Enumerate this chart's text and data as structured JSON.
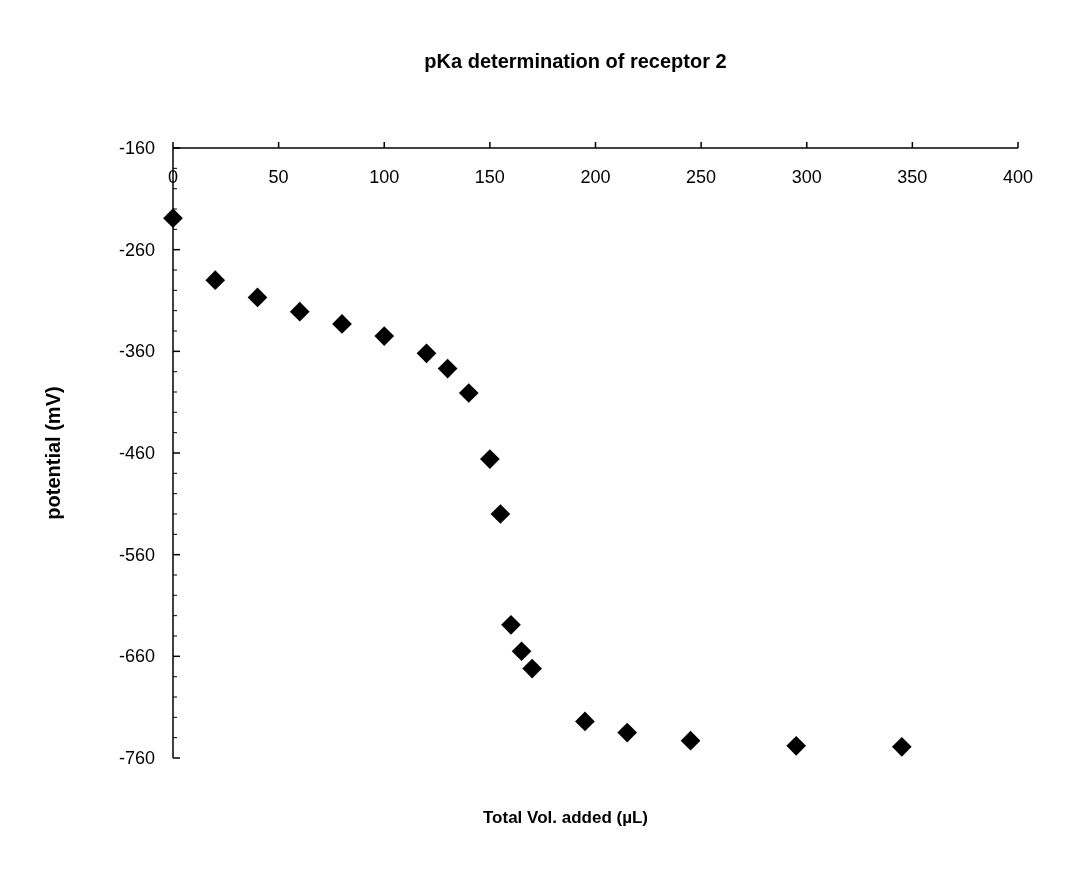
{
  "chart_data": {
    "type": "scatter",
    "title": "pKa determination of receptor 2",
    "xlabel": "Total Vol. added (µL)",
    "ylabel": "potential (mV)",
    "x": [
      0,
      20,
      40,
      60,
      80,
      100,
      120,
      130,
      140,
      150,
      155,
      160,
      165,
      170,
      195,
      215,
      245,
      295,
      345
    ],
    "values": [
      -229,
      -290,
      -307,
      -321,
      -333,
      -345,
      -362,
      -377,
      -401,
      -466,
      -520,
      -629,
      -655,
      -672,
      -724,
      -735,
      -743,
      -748,
      -749
    ],
    "color": "#000000",
    "marker": "diamond",
    "xlim": [
      0,
      400
    ],
    "xticks": [
      0,
      50,
      100,
      150,
      200,
      250,
      300,
      350,
      400
    ],
    "ylim": [
      -760,
      -160
    ],
    "yticks": [
      -160,
      -260,
      -360,
      -460,
      -560,
      -660,
      -760
    ],
    "grid": false
  }
}
